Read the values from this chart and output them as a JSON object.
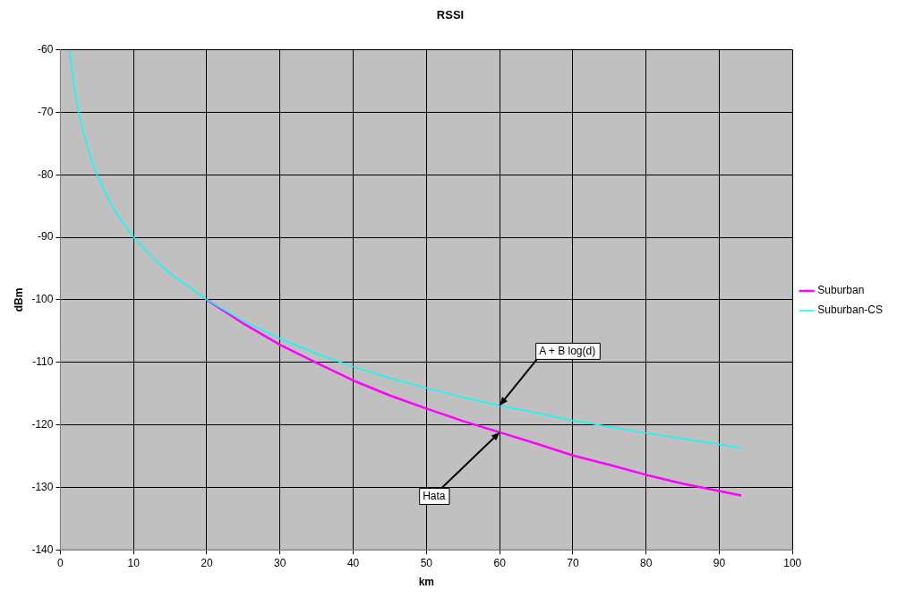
{
  "chart_data": {
    "type": "line",
    "title": "RSSI",
    "xlabel": "km",
    "ylabel": "dBm",
    "x": [
      1.25,
      1.5,
      2,
      2.5,
      3,
      4,
      5,
      6,
      7,
      8,
      10,
      12,
      15,
      20,
      25,
      30,
      35,
      40,
      45,
      50,
      55,
      60,
      65,
      70,
      75,
      80,
      85,
      90,
      93
    ],
    "series": [
      {
        "name": "Suburban",
        "color": "#ff00ff",
        "values": [
          null,
          null,
          null,
          null,
          null,
          null,
          null,
          null,
          null,
          null,
          null,
          null,
          null,
          -100.0,
          -103.8,
          -107.2,
          -110.1,
          -112.9,
          -115.3,
          -117.4,
          -119.4,
          -121.2,
          -123.0,
          -124.9,
          -126.4,
          -128.0,
          -129.4,
          -130.6,
          -131.3
        ]
      },
      {
        "name": "Suburban-CS",
        "color": "#00ffff",
        "values": [
          -60.0,
          -62.6,
          -66.8,
          -70.0,
          -72.6,
          -76.8,
          -80.0,
          -82.6,
          -84.9,
          -86.8,
          -90.0,
          -92.6,
          -95.8,
          -100.0,
          -103.4,
          -106.2,
          -108.6,
          -110.7,
          -112.5,
          -114.1,
          -115.6,
          -116.9,
          -118.1,
          -119.3,
          -120.3,
          -121.3,
          -122.2,
          -123.1,
          -123.7
        ]
      }
    ],
    "xlim": [
      0,
      100
    ],
    "xticks": [
      0,
      10,
      20,
      30,
      40,
      50,
      60,
      70,
      80,
      90,
      100
    ],
    "ylim": [
      -140,
      -60
    ],
    "yticks": [
      -140,
      -130,
      -120,
      -110,
      -100,
      -90,
      -80,
      -70,
      -60
    ],
    "grid": true,
    "legend": "right",
    "marker": "none",
    "line_style": "solid",
    "annotations": [
      {
        "text": "A + B log(d)",
        "x": 60,
        "y": -116.9
      },
      {
        "text": "Hata",
        "x": 60,
        "y": -121.2
      }
    ]
  }
}
